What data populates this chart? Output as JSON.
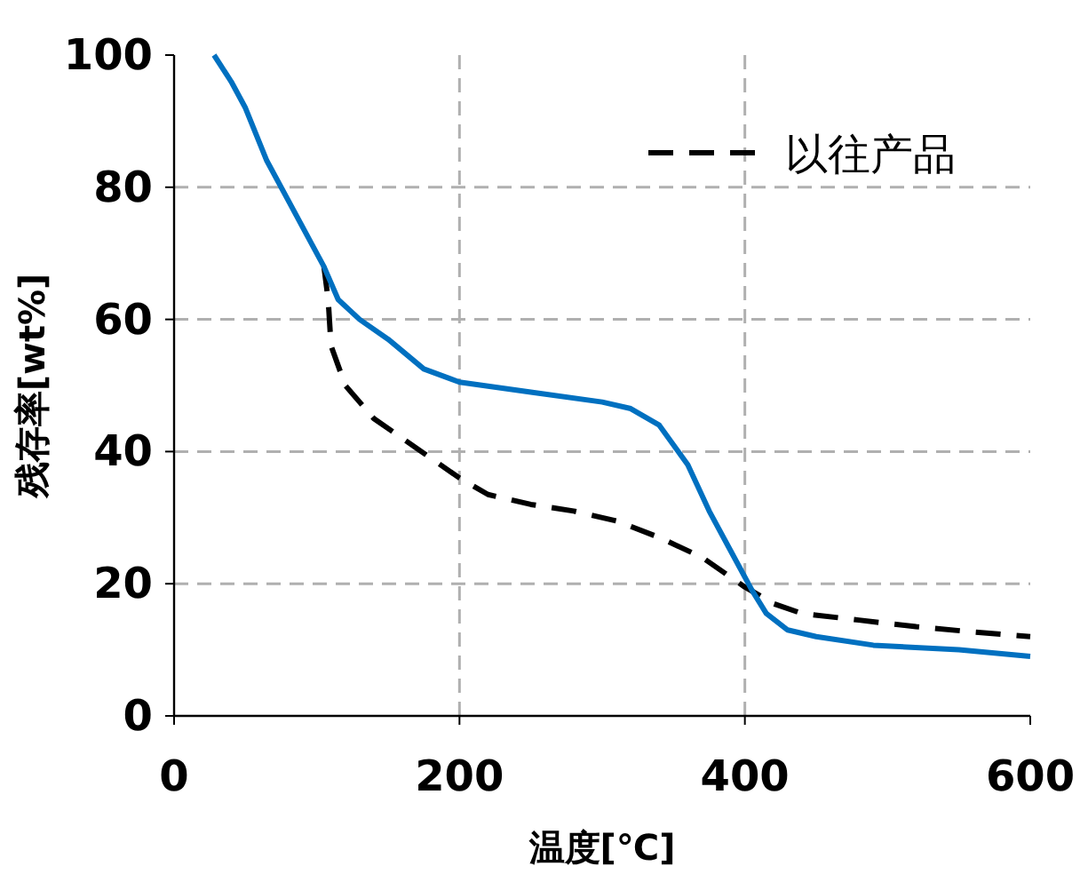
{
  "chart_data": {
    "type": "line",
    "xlabel": "温度[℃]",
    "ylabel": "残存率[wt%]",
    "xlim": [
      0,
      600
    ],
    "ylim": [
      0,
      100
    ],
    "xticks": [
      0,
      200,
      400,
      600
    ],
    "yticks": [
      0,
      20,
      40,
      60,
      80,
      100
    ],
    "grid": true,
    "legend": "top right",
    "marker": "none",
    "series": [
      {
        "name": "以往产品",
        "color": "#000000",
        "line_style": "dashed",
        "x": [
          105,
          108,
          110,
          120,
          140,
          160,
          180,
          200,
          220,
          250,
          280,
          310,
          340,
          370,
          400,
          420,
          440,
          480,
          520,
          560,
          600
        ],
        "values": [
          68,
          63,
          56,
          50,
          45,
          42,
          39,
          36,
          33.5,
          32,
          31,
          29.5,
          27,
          24,
          19.5,
          17,
          15.5,
          14.5,
          13.5,
          12.7,
          12
        ]
      },
      {
        "color": "#0070c0",
        "line_style": "solid",
        "x": [
          28,
          40,
          50,
          65,
          80,
          95,
          105,
          115,
          130,
          150,
          175,
          200,
          250,
          300,
          320,
          340,
          360,
          375,
          390,
          405,
          415,
          430,
          450,
          490,
          550,
          600
        ],
        "values": [
          100,
          96,
          92,
          84,
          78,
          72,
          68,
          63,
          60,
          57,
          52.5,
          50.5,
          49,
          47.5,
          46.5,
          44,
          38,
          31,
          25,
          19,
          15.5,
          13,
          12,
          10.7,
          10,
          9
        ]
      }
    ]
  }
}
